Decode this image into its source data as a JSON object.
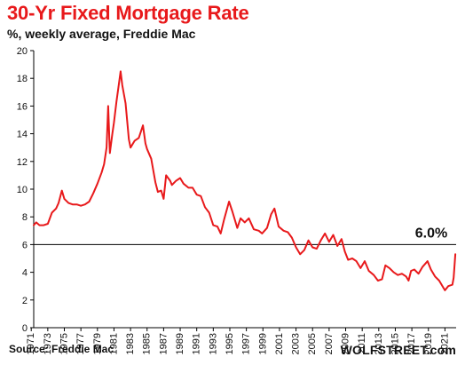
{
  "header": {
    "title": "30-Yr Fixed Mortgage  Rate",
    "subtitle": "%, weekly average, Freddie Mac"
  },
  "footer": {
    "source": "Source: Freddie Mac",
    "brand": "WOLFSTREET.com"
  },
  "colors": {
    "line": "#e8191b",
    "title": "#e8191b",
    "reference_line": "#000000"
  },
  "chart_data": {
    "type": "line",
    "title": "30-Yr Fixed Mortgage  Rate",
    "subtitle": "%, weekly average, Freddie Mac",
    "xlabel": "",
    "ylabel": "",
    "xlim": [
      1971.3,
      2022.35
    ],
    "ylim": [
      0,
      20
    ],
    "y_ticks": [
      0,
      2,
      4,
      6,
      8,
      10,
      12,
      14,
      16,
      18,
      20
    ],
    "x_ticks": [
      "1971",
      "1973",
      "1975",
      "1977",
      "1979",
      "1981",
      "1983",
      "1985",
      "1987",
      "1989",
      "1991",
      "1993",
      "1995",
      "1997",
      "1999",
      "2001",
      "2003",
      "2005",
      "2007",
      "2009",
      "2011",
      "2013",
      "2015",
      "2017",
      "2019",
      "2021"
    ],
    "grid": false,
    "reference_line": {
      "y": 6.0,
      "label": "6.0%"
    },
    "series": [
      {
        "x": [
          1971.3,
          1971.6,
          1972.0,
          1972.5,
          1973.0,
          1973.5,
          1974.0,
          1974.3,
          1974.7,
          1975.0,
          1975.5,
          1976.0,
          1976.5,
          1977.0,
          1977.5,
          1978.0,
          1978.5,
          1979.0,
          1979.5,
          1979.8,
          1980.1,
          1980.3,
          1980.5,
          1980.8,
          1981.0,
          1981.3,
          1981.6,
          1981.8,
          1982.0,
          1982.4,
          1982.8,
          1983.0,
          1983.5,
          1984.0,
          1984.5,
          1984.8,
          1985.0,
          1985.5,
          1986.0,
          1986.3,
          1986.7,
          1987.0,
          1987.3,
          1987.8,
          1988.0,
          1988.5,
          1989.0,
          1989.4,
          1990.0,
          1990.5,
          1991.0,
          1991.5,
          1992.0,
          1992.5,
          1993.0,
          1993.5,
          1993.9,
          1994.3,
          1994.9,
          1995.3,
          1995.9,
          1996.3,
          1996.8,
          1997.3,
          1997.9,
          1998.5,
          1998.9,
          1999.5,
          2000.0,
          2000.4,
          2000.9,
          2001.5,
          2002.0,
          2002.5,
          2003.0,
          2003.5,
          2004.0,
          2004.5,
          2005.0,
          2005.5,
          2006.0,
          2006.5,
          2007.0,
          2007.5,
          2008.0,
          2008.5,
          2008.9,
          2009.3,
          2009.8,
          2010.3,
          2010.8,
          2011.3,
          2011.8,
          2012.4,
          2012.9,
          2013.4,
          2013.8,
          2014.3,
          2014.8,
          2015.3,
          2015.8,
          2016.3,
          2016.6,
          2016.9,
          2017.3,
          2017.8,
          2018.3,
          2018.9,
          2019.3,
          2019.8,
          2020.3,
          2020.8,
          2021.0,
          2021.4,
          2021.9,
          2022.05,
          2022.15,
          2022.25
        ],
        "y": [
          7.4,
          7.6,
          7.4,
          7.4,
          7.5,
          8.3,
          8.6,
          9.0,
          9.9,
          9.3,
          9.0,
          8.9,
          8.9,
          8.8,
          8.9,
          9.1,
          9.7,
          10.4,
          11.2,
          11.8,
          13.0,
          16.0,
          12.6,
          14.0,
          14.8,
          16.3,
          17.6,
          18.5,
          17.5,
          16.2,
          13.6,
          13.0,
          13.5,
          13.7,
          14.6,
          13.3,
          12.9,
          12.2,
          10.5,
          9.8,
          9.9,
          9.3,
          11.0,
          10.6,
          10.3,
          10.6,
          10.8,
          10.4,
          10.1,
          10.1,
          9.6,
          9.5,
          8.7,
          8.3,
          7.4,
          7.3,
          6.8,
          7.8,
          9.1,
          8.4,
          7.2,
          7.9,
          7.6,
          7.9,
          7.1,
          7.0,
          6.8,
          7.2,
          8.2,
          8.6,
          7.3,
          7.0,
          6.9,
          6.5,
          5.8,
          5.3,
          5.6,
          6.3,
          5.8,
          5.7,
          6.3,
          6.8,
          6.2,
          6.7,
          5.9,
          6.4,
          5.5,
          4.9,
          5.0,
          4.8,
          4.3,
          4.8,
          4.1,
          3.8,
          3.4,
          3.5,
          4.5,
          4.3,
          4.0,
          3.8,
          3.9,
          3.7,
          3.4,
          4.1,
          4.2,
          3.9,
          4.4,
          4.8,
          4.2,
          3.7,
          3.4,
          2.9,
          2.7,
          3.0,
          3.1,
          3.6,
          4.4,
          5.3
        ]
      }
    ]
  }
}
